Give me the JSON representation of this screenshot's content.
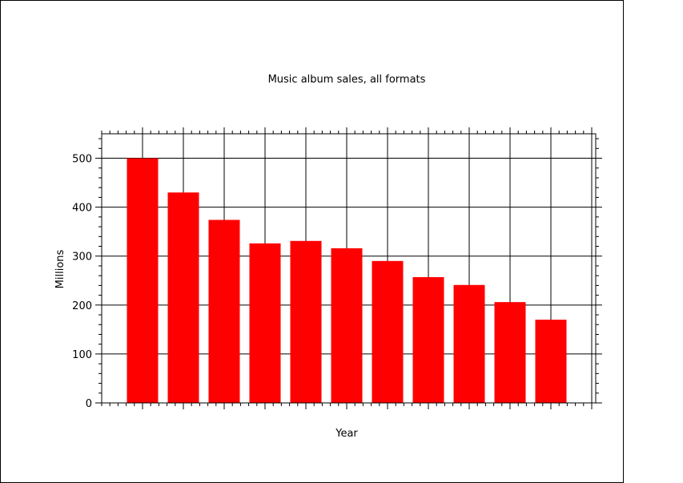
{
  "chart_data": {
    "type": "bar",
    "title": "Music album sales, all formats",
    "xlabel": "Year",
    "ylabel": "Millions",
    "ylim": [
      0,
      550
    ],
    "yticks": [
      0,
      100,
      200,
      300,
      400,
      500
    ],
    "grid": true,
    "values": [
      500,
      430,
      374,
      326,
      331,
      316,
      290,
      257,
      241,
      206,
      170
    ],
    "colors": {
      "bar": "#ff0000",
      "axis": "#000000"
    }
  }
}
